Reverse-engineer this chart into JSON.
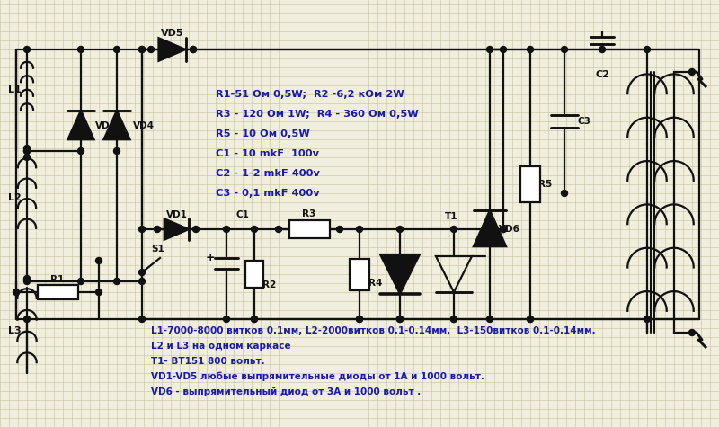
{
  "bg_color": "#f0eedc",
  "grid_color": "#c8c0a0",
  "line_color": "#111111",
  "node_color": "#111111",
  "blue_text": "#1a1aaa",
  "annotations": [
    "R1-51 Ом 0,5W;  R2 -6,2 кОм 2W",
    "R3 - 120 Ом 1W;  R4 - 360 Ом 0,5W",
    "R5 - 10 Ом 0,5W",
    "C1 - 10 mkF  100v",
    "C2 - 1-2 mkF 400v",
    "C3 - 0,1 mkF 400v"
  ],
  "bottom_text": [
    "L1-7000-8000 витков 0.1мм, L2-2000витков 0.1-0.14мм,  L3-150витков 0.1-0.14мм.",
    "L2 и L3 на одном каркасе",
    "T1- BT151 800 вольт.",
    "VD1-VD5 любые выпрямительные диоды от 1А и 1000 вольт.",
    "VD6 - выпрямительный диод от 3А и 1000 вольт ."
  ]
}
